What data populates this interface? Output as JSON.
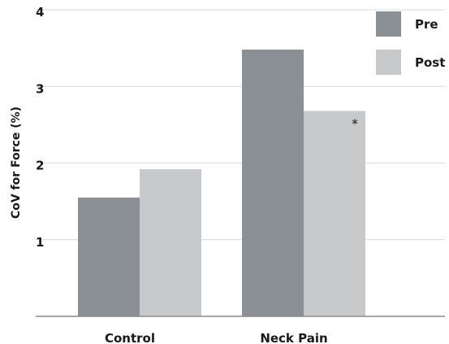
{
  "chart_data": {
    "type": "bar",
    "title": "",
    "xlabel": "",
    "ylabel": "CoV for Force (%)",
    "categories": [
      "Control",
      "Neck Pain"
    ],
    "series": [
      {
        "name": "Pre",
        "values": [
          1.55,
          3.48
        ],
        "color": "#8a9096"
      },
      {
        "name": "Post",
        "values": [
          1.92,
          2.68
        ],
        "color": "#c8c9cb"
      }
    ],
    "ylim": [
      0,
      4
    ],
    "yticks": [
      1,
      2,
      3,
      4
    ],
    "grid": true,
    "legend_position": "top-right",
    "annotations": [
      {
        "text": "*",
        "category": "Neck Pain",
        "series": "Post"
      }
    ]
  }
}
